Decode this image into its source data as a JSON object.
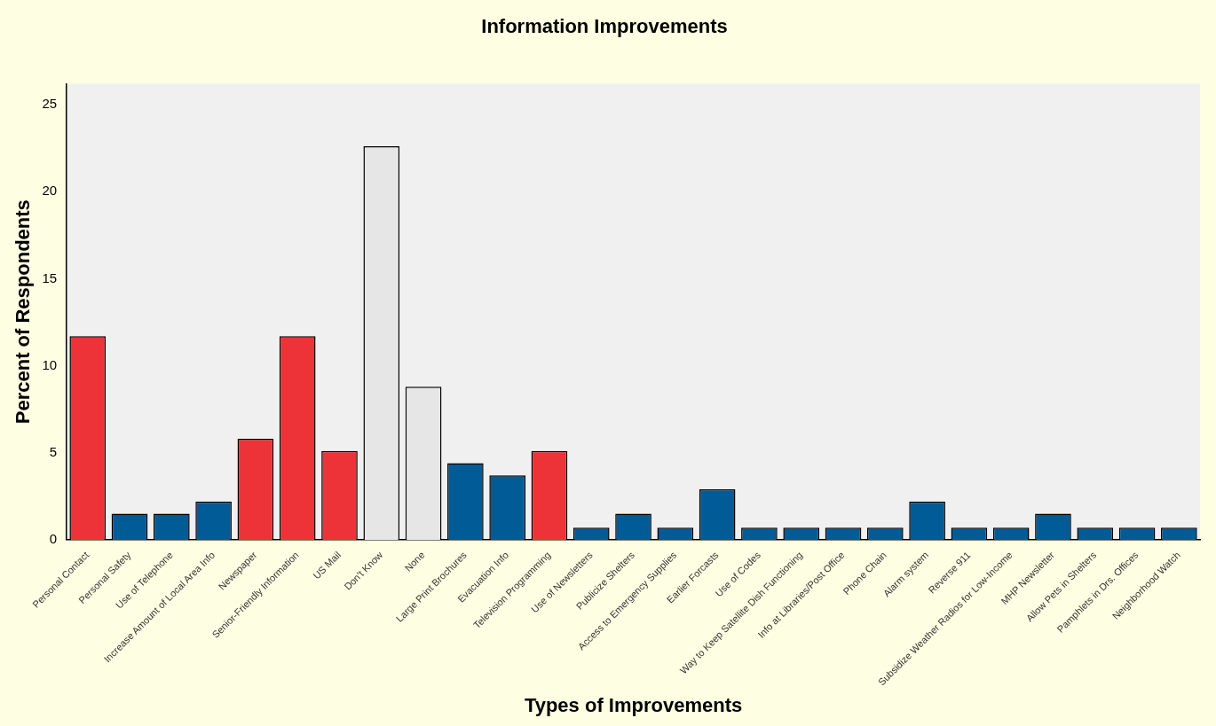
{
  "chart_data": {
    "type": "bar",
    "title": "Information Improvements",
    "xlabel": "Types of Improvements",
    "ylabel": "Percent of Respondents",
    "categories": [
      "Personal Contact",
      "Personal Safety",
      "Use of Telephone",
      "Increase Amount of Local Area Info",
      "Newspaper",
      "Senior-Friendly Information",
      "US Mail",
      "Don't Know",
      "None",
      "Large Print Brochures",
      "Evacuation Info",
      "Television Programming",
      "Use of Newsletters",
      "Publicize Shelters",
      "Access to Emergency Supplies",
      "Earlier Forcasts",
      "Use of Codes",
      "Way to Keep Satellite Dish Functioning",
      "Info at Libraries/Post Office",
      "Phone Chain",
      "Alarm system",
      "Reverse 911",
      "Subsidize Weather Radios for Low-Income",
      "MHP Newsletter",
      "Allow Pets in Shelters",
      "Pamphlets in Drs. Offices",
      "Neighborhood Watch"
    ],
    "values": [
      11.7,
      1.5,
      1.5,
      2.2,
      5.8,
      11.7,
      5.1,
      22.6,
      8.8,
      4.4,
      3.7,
      5.1,
      0.7,
      1.5,
      0.7,
      2.9,
      0.7,
      0.7,
      0.7,
      0.7,
      2.2,
      0.7,
      0.7,
      1.5,
      0.7,
      0.7,
      0.7
    ],
    "colors": [
      "#ee3338",
      "#005b96",
      "#005b96",
      "#005b96",
      "#ee3338",
      "#ee3338",
      "#ee3338",
      "#e6e6e6",
      "#e6e6e6",
      "#005b96",
      "#005b96",
      "#ee3338",
      "#005b96",
      "#005b96",
      "#005b96",
      "#005b96",
      "#005b96",
      "#005b96",
      "#005b96",
      "#005b96",
      "#005b96",
      "#005b96",
      "#005b96",
      "#005b96",
      "#005b96",
      "#005b96",
      "#005b96"
    ],
    "ylim": [
      0,
      26.2
    ],
    "yticks": [
      0,
      5,
      10,
      15,
      20,
      25
    ],
    "grid": false,
    "legend": false
  }
}
